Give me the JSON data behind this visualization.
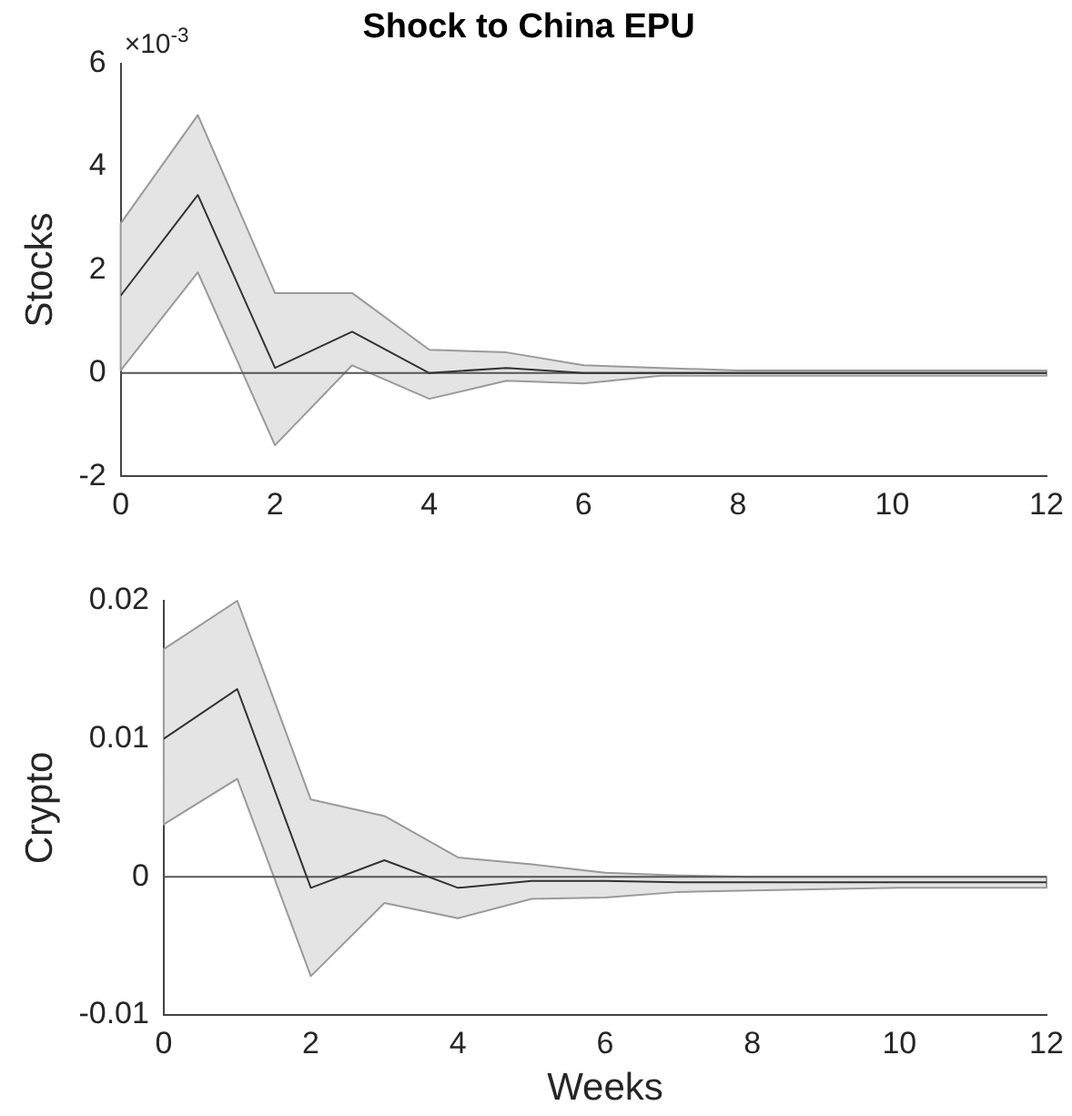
{
  "chart_data": [
    {
      "type": "line",
      "title": "Shock to China EPU",
      "ylabel": "Stocks",
      "annotations": [
        "×10$^{-3}$"
      ],
      "x": [
        0,
        1,
        2,
        3,
        4,
        5,
        6,
        7,
        8,
        9,
        10,
        11,
        12
      ],
      "series": [
        {
          "color": "#333333",
          "values": [
            1.5,
            3.45,
            0.1,
            0.8,
            0,
            0.1,
            0,
            0,
            0,
            0,
            0,
            0,
            0
          ],
          "lower": [
            0.05,
            1.95,
            -1.4,
            0.15,
            -0.5,
            -0.15,
            -0.2,
            -0.05,
            -0.05,
            -0.05,
            -0.05,
            -0.05,
            -0.05
          ],
          "upper": [
            2.9,
            5.0,
            1.55,
            1.55,
            0.45,
            0.4,
            0.15,
            0.1,
            0.05,
            0.05,
            0.05,
            0.05,
            0.05
          ]
        }
      ],
      "xlim": [
        0,
        12
      ],
      "xticks": [
        0,
        2,
        4,
        6,
        8,
        10,
        12
      ],
      "ylim": [
        -2,
        6
      ],
      "yticks": [
        -2,
        0,
        2,
        4,
        6
      ],
      "ref_lines": [
        {
          "axis": "y",
          "value": 0,
          "color": "#555555"
        }
      ],
      "grid": false,
      "legend": false
    },
    {
      "type": "line",
      "xlabel": "Weeks",
      "ylabel": "Crypto",
      "x": [
        0,
        1,
        2,
        3,
        4,
        5,
        6,
        7,
        8,
        9,
        10,
        11,
        12
      ],
      "series": [
        {
          "color": "#333333",
          "values": [
            0.01,
            0.0136,
            -0.0008,
            0.0012,
            -0.0008,
            -0.0003,
            -0.0003,
            -0.0004,
            -0.0004,
            -0.0004,
            -0.0004,
            -0.0004,
            -0.0004
          ],
          "lower": [
            0.0038,
            0.0071,
            -0.0072,
            -0.0019,
            -0.003,
            -0.0016,
            -0.0015,
            -0.0011,
            -0.001,
            -0.0009,
            -0.0008,
            -0.0008,
            -0.0008
          ],
          "upper": [
            0.0165,
            0.02,
            0.0056,
            0.0044,
            0.0014,
            0.0009,
            0.0003,
            0.0001,
            0.0,
            0.0,
            0.0,
            0.0,
            0.0
          ]
        }
      ],
      "xlim": [
        0,
        12
      ],
      "xticks": [
        0,
        2,
        4,
        6,
        8,
        10,
        12
      ],
      "ylim": [
        -0.01,
        0.02
      ],
      "yticks": [
        -0.01,
        0,
        0.01,
        0.02
      ],
      "ref_lines": [
        {
          "axis": "y",
          "value": 0,
          "color": "#555555"
        }
      ],
      "grid": false,
      "legend": false
    }
  ]
}
